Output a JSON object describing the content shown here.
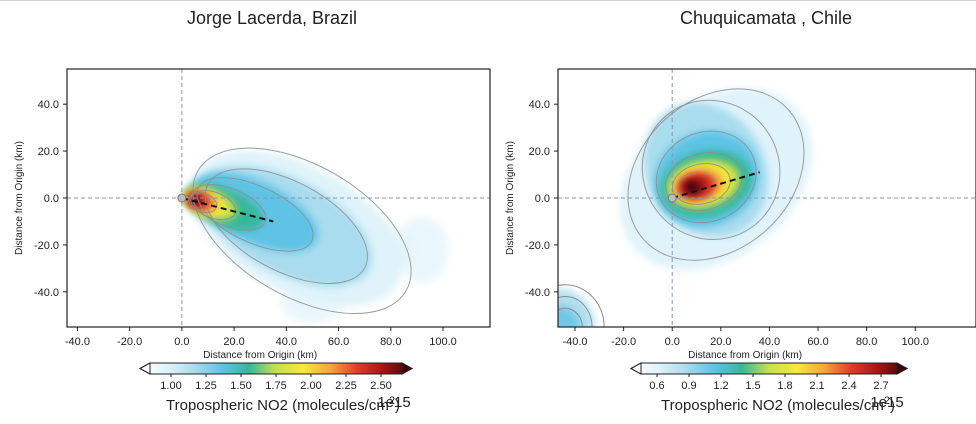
{
  "chart_data": [
    {
      "type": "heatmap",
      "title": "Jorge Lacerda, Brazil",
      "xlabel": "Distance from Origin (km)",
      "ylabel": "Distance from Origin (km)",
      "x_ticks": [
        "-40.0",
        "-20.0",
        "0.0",
        "20.0",
        "40.0",
        "60.0",
        "80.0",
        "100.0"
      ],
      "y_ticks": [
        "40.0",
        "20.0",
        "0.0",
        "-20.0",
        "-40.0"
      ],
      "xlim": [
        -44,
        118
      ],
      "ylim": [
        -55,
        55
      ],
      "grid": false,
      "origin": [
        0,
        0
      ],
      "plume_direction_line": {
        "start": [
          0,
          0
        ],
        "end": [
          35,
          -10
        ]
      },
      "hotspot_center": [
        6,
        -1
      ],
      "colorbar": {
        "label": "Tropospheric NO2 (molecules/cm",
        "label_sup": "2",
        "label_close": ")",
        "multiplier": "1e15",
        "ticks": [
          "1.00",
          "1.25",
          "1.50",
          "1.75",
          "2.00",
          "2.25",
          "2.50"
        ],
        "range": [
          0.85,
          2.65
        ]
      }
    },
    {
      "type": "heatmap",
      "title": "Chuquicamata , Chile",
      "xlabel": "Distance from Origin (km)",
      "ylabel": "Distance from Origin (km)",
      "x_ticks": [
        "-40.0",
        "-20.0",
        "0.0",
        "20.0",
        "40.0",
        "60.0",
        "80.0",
        "100.0"
      ],
      "y_ticks": [
        "40.0",
        "20.0",
        "0.0",
        "-20.0",
        "-40.0"
      ],
      "xlim": [
        -47,
        125
      ],
      "ylim": [
        -55,
        55
      ],
      "grid": false,
      "origin": [
        0,
        0
      ],
      "plume_direction_line": {
        "start": [
          0,
          0
        ],
        "end": [
          36,
          11
        ]
      },
      "hotspot_center": [
        10,
        6
      ],
      "colorbar": {
        "label": "Tropospheric NO2 (molecules/cm",
        "label_sup": "2",
        "label_close": ")",
        "multiplier": "1e15",
        "ticks": [
          "0.6",
          "0.9",
          "1.2",
          "1.5",
          "1.8",
          "2.1",
          "2.4",
          "2.7"
        ],
        "range": [
          0.45,
          2.85
        ]
      }
    }
  ],
  "colors": {
    "colormap": [
      "#ffffff",
      "#e0f3fa",
      "#a9dcee",
      "#5fc3e6",
      "#35b89a",
      "#c9e04a",
      "#f6e93a",
      "#f7a53a",
      "#e23a2a",
      "#a31214",
      "#3a0508"
    ],
    "contour_line": "#8d8d8d",
    "origin_cross": "#8797b2"
  }
}
